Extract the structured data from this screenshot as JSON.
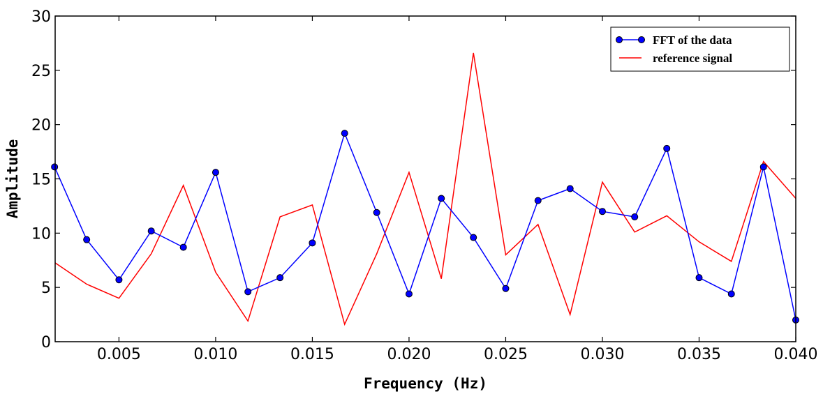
{
  "chart_data": {
    "type": "line",
    "title": "",
    "xlabel": "Frequency (Hz)",
    "ylabel": "Amplitude",
    "xlim": [
      0.0017,
      0.04
    ],
    "ylim": [
      0,
      30
    ],
    "xticks": [
      0.005,
      0.01,
      0.015,
      0.02,
      0.025,
      0.03,
      0.035,
      0.04
    ],
    "xtick_labels": [
      "0.005",
      "0.010",
      "0.015",
      "0.020",
      "0.025",
      "0.030",
      "0.035",
      "0.040"
    ],
    "yticks": [
      0,
      5,
      10,
      15,
      20,
      25,
      30
    ],
    "ytick_labels": [
      "0",
      "5",
      "10",
      "15",
      "20",
      "25",
      "30"
    ],
    "grid": false,
    "legend_position": "top-right",
    "x": [
      0.00167,
      0.00333,
      0.005,
      0.00667,
      0.00833,
      0.01,
      0.01167,
      0.01333,
      0.015,
      0.01667,
      0.01833,
      0.02,
      0.02167,
      0.02333,
      0.025,
      0.02667,
      0.02833,
      0.03,
      0.03167,
      0.03333,
      0.035,
      0.03667,
      0.03833,
      0.04
    ],
    "series": [
      {
        "name": "FFT of the data",
        "color": "#0000ff",
        "marker": "circle",
        "values": [
          16.1,
          9.4,
          5.7,
          10.2,
          8.7,
          15.6,
          4.6,
          5.9,
          9.1,
          19.2,
          11.9,
          4.4,
          13.2,
          9.6,
          4.9,
          13.0,
          14.1,
          12.0,
          11.5,
          17.8,
          5.9,
          4.4,
          16.1,
          2.0
        ]
      },
      {
        "name": "reference signal",
        "color": "#ff0000",
        "marker": "none",
        "values": [
          7.3,
          5.3,
          4.0,
          8.1,
          14.4,
          6.4,
          1.9,
          11.5,
          12.6,
          1.6,
          8.1,
          15.6,
          5.8,
          26.6,
          8.0,
          10.8,
          2.5,
          14.7,
          10.1,
          11.6,
          9.2,
          7.4,
          16.6,
          13.2
        ]
      }
    ]
  }
}
